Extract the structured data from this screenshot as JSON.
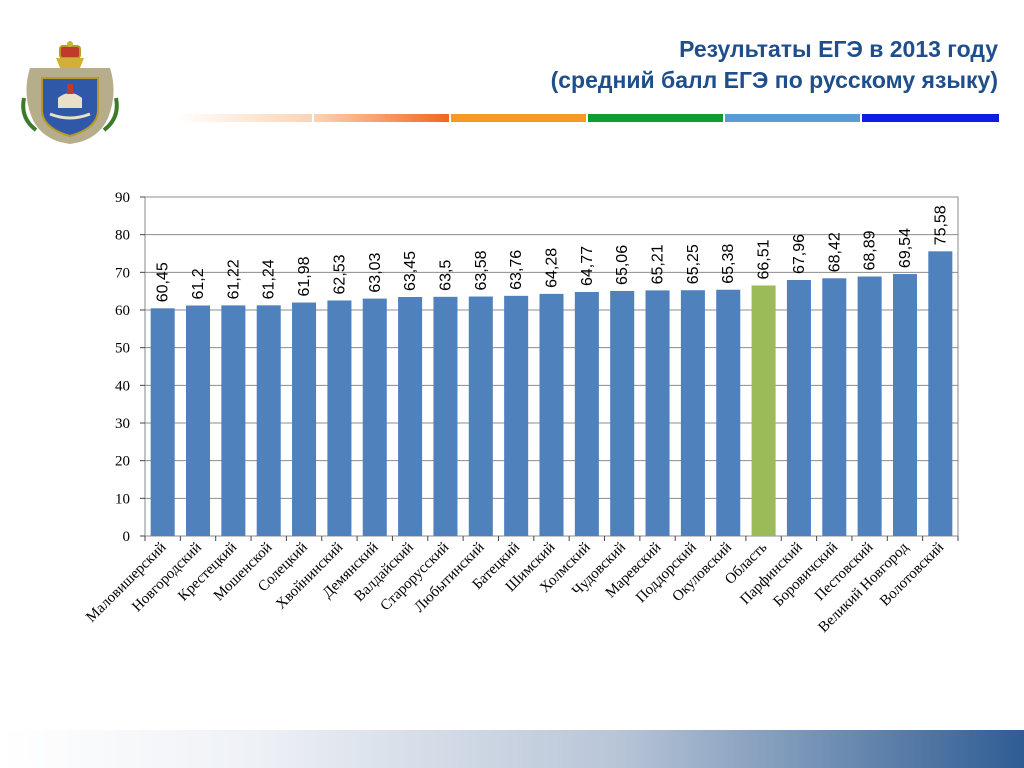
{
  "title": {
    "line1": "Результаты ЕГЭ в 2013 году",
    "line2": "(средний балл ЕГЭ по русскому языку)"
  },
  "colors": {
    "title": "#1f4e8c",
    "bar": "#4f81bd",
    "highlight_bar": "#9bbb59",
    "stripes": [
      "#fde9d9",
      "#f79646",
      "#f59a23",
      "#0f9d2f",
      "#5b9bd5",
      "#0b1fe0"
    ]
  },
  "emblem": {
    "icon": "coat-of-arms-icon"
  },
  "chart_data": {
    "type": "bar",
    "categories": [
      "Маловишерский",
      "Новгородский",
      "Крестецкий",
      "Мошенской",
      "Солецкий",
      "Хвойнинский",
      "Демянский",
      "Валдайский",
      "Старорусский",
      "Любытинский",
      "Батецкий",
      "Шимский",
      "Холмский",
      "Чудовский",
      "Маревский",
      "Поддорский",
      "Окуловский",
      "Область",
      "Парфинский",
      "Боровичский",
      "Пестовский",
      "Великий Новгород",
      "Волотовский"
    ],
    "values": [
      60.45,
      61.2,
      61.22,
      61.24,
      61.98,
      62.53,
      63.03,
      63.45,
      63.5,
      63.58,
      63.76,
      64.28,
      64.77,
      65.06,
      65.21,
      65.25,
      65.38,
      66.51,
      67.96,
      68.42,
      68.89,
      69.54,
      75.58
    ],
    "value_labels": [
      "60,45",
      "61,2",
      "61,22",
      "61,24",
      "61,98",
      "62,53",
      "63,03",
      "63,45",
      "63,5",
      "63,58",
      "63,76",
      "64,28",
      "64,77",
      "65,06",
      "65,21",
      "65,25",
      "65,38",
      "66,51",
      "67,96",
      "68,42",
      "68,89",
      "69,54",
      "75,58"
    ],
    "highlight_category": "Область",
    "yticks": [
      "0",
      "10",
      "20",
      "30",
      "40",
      "50",
      "60",
      "70",
      "80",
      "90"
    ],
    "ylim": [
      0,
      90
    ],
    "grid": true,
    "legend": "none"
  }
}
